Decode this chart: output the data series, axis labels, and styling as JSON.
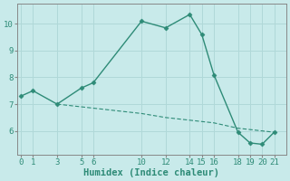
{
  "line1_x": [
    0,
    1,
    3,
    5,
    6,
    10,
    12,
    14,
    15,
    16,
    18,
    19,
    20,
    21
  ],
  "line1_y": [
    7.3,
    7.5,
    7.0,
    7.6,
    7.8,
    10.1,
    9.85,
    10.35,
    9.6,
    8.1,
    5.95,
    5.55,
    5.5,
    5.95
  ],
  "line2_x": [
    3,
    10,
    12,
    14,
    15,
    16,
    18,
    19,
    20,
    21
  ],
  "line2_y": [
    7.0,
    6.65,
    6.5,
    6.4,
    6.35,
    6.3,
    6.1,
    6.05,
    6.0,
    5.95
  ],
  "line_color": "#2e8b77",
  "background_color": "#c8eaea",
  "grid_color": "#b0d8d8",
  "xlabel": "Humidex (Indice chaleur)",
  "xticks": [
    0,
    1,
    3,
    5,
    6,
    10,
    12,
    14,
    15,
    16,
    18,
    19,
    20,
    21
  ],
  "yticks": [
    6,
    7,
    8,
    9,
    10
  ],
  "xlim": [
    -0.3,
    22.0
  ],
  "ylim": [
    5.1,
    10.75
  ],
  "xlabel_fontsize": 7.5,
  "tick_fontsize": 6.5,
  "linewidth": 1.0,
  "line2_linewidth": 0.8,
  "markersize": 2.5
}
